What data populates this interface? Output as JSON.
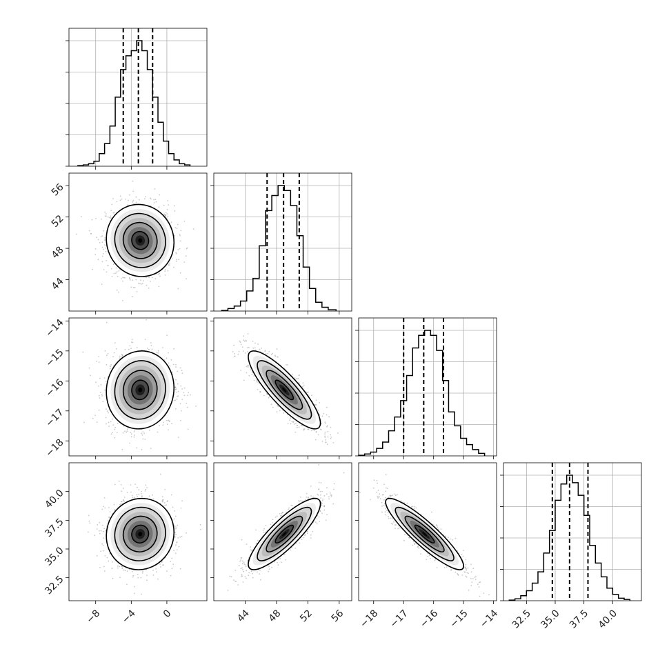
{
  "chart_data": {
    "type": "corner",
    "parameters": [
      {
        "range": [
          -11,
          4.5
        ],
        "ticks": [
          {
            "v": -8,
            "label": "−8"
          },
          {
            "v": -4,
            "label": "−4"
          },
          {
            "v": 0,
            "label": "0"
          }
        ],
        "hist": {
          "edges": [
            -10,
            -9.4,
            -8.8,
            -8.2,
            -7.6,
            -7.0,
            -6.4,
            -5.8,
            -5.2,
            -4.6,
            -4.0,
            -3.4,
            -2.8,
            -2.2,
            -1.6,
            -1.0,
            -0.4,
            0.2,
            0.8,
            1.4,
            2.0,
            2.6
          ],
          "counts": [
            0.5,
            1,
            2,
            4,
            10,
            18,
            32,
            55,
            77,
            88,
            92,
            100,
            92,
            77,
            55,
            35,
            20,
            10,
            5,
            2,
            1
          ],
          "max": 100
        },
        "quantiles": [
          -4.9,
          -3.2,
          -1.6
        ]
      },
      {
        "range": [
          40.0,
          57.6
        ],
        "ticks": [
          {
            "v": 44,
            "label": "44"
          },
          {
            "v": 48,
            "label": "48"
          },
          {
            "v": 52,
            "label": "52"
          },
          {
            "v": 56,
            "label": "56"
          }
        ],
        "hist": {
          "edges": [
            41.0,
            41.8,
            42.6,
            43.4,
            44.2,
            45.0,
            45.8,
            46.6,
            47.4,
            48.2,
            49.0,
            49.8,
            50.6,
            51.4,
            52.2,
            53.0,
            53.8,
            54.6,
            55.6
          ],
          "counts": [
            0.5,
            2,
            4,
            8,
            16,
            26,
            52,
            80,
            92,
            100,
            96,
            84,
            60,
            35,
            18,
            7,
            3,
            1
          ],
          "max": 100
        },
        "quantiles": [
          46.8,
          48.9,
          50.9
        ]
      },
      {
        "range": [
          -18.5,
          -13.9
        ],
        "ticks": [
          {
            "v": -18,
            "label": "−18"
          },
          {
            "v": -17,
            "label": "−17"
          },
          {
            "v": -16,
            "label": "−16"
          },
          {
            "v": -15,
            "label": "−15"
          },
          {
            "v": -14,
            "label": "−14"
          }
        ],
        "hist": {
          "edges": [
            -18.5,
            -18.3,
            -18.1,
            -17.9,
            -17.7,
            -17.5,
            -17.3,
            -17.1,
            -16.9,
            -16.7,
            -16.5,
            -16.3,
            -16.1,
            -15.9,
            -15.7,
            -15.5,
            -15.3,
            -15.1,
            -14.9,
            -14.7,
            -14.5,
            -14.3
          ],
          "counts": [
            0.5,
            1.5,
            3,
            6,
            11,
            20,
            31,
            44,
            64,
            86,
            96,
            100,
            96,
            84,
            60,
            35,
            24,
            14,
            9,
            5,
            2
          ],
          "max": 100
        },
        "quantiles": [
          -17.0,
          -16.33,
          -15.67
        ]
      },
      {
        "range": [
          30.5,
          42.5
        ],
        "ticks": [
          {
            "v": 32.5,
            "label": "32.5"
          },
          {
            "v": 35.0,
            "label": "35.0"
          },
          {
            "v": 37.5,
            "label": "37.5"
          },
          {
            "v": 40.0,
            "label": "40.0"
          }
        ],
        "hist": {
          "edges": [
            31.0,
            31.5,
            32.0,
            32.5,
            33.0,
            33.5,
            34.0,
            34.5,
            35.0,
            35.5,
            36.0,
            36.5,
            37.0,
            37.5,
            38.0,
            38.5,
            39.0,
            39.5,
            40.0,
            40.5,
            41.0,
            41.5
          ],
          "counts": [
            0.5,
            1.5,
            4,
            8,
            14,
            23,
            38,
            56,
            80,
            93,
            100,
            94,
            84,
            68,
            44,
            30,
            19,
            10,
            5,
            2,
            1
          ],
          "max": 100
        },
        "quantiles": [
          34.75,
          36.25,
          37.85
        ]
      }
    ],
    "pairs": [
      {
        "row": 1,
        "col": 0,
        "mean": [
          -3.0,
          49.0
        ],
        "sd": [
          1.9,
          2.3
        ],
        "rho": -0.05,
        "samples": 1300
      },
      {
        "row": 2,
        "col": 0,
        "mean": [
          -3.0,
          -16.3
        ],
        "sd": [
          1.9,
          0.65
        ],
        "rho": 0.05,
        "samples": 1300
      },
      {
        "row": 2,
        "col": 1,
        "mean": [
          49.0,
          -16.3
        ],
        "sd": [
          2.3,
          0.65
        ],
        "rho": -0.85,
        "samples": 1300
      },
      {
        "row": 3,
        "col": 0,
        "mean": [
          -3.0,
          36.3
        ],
        "sd": [
          1.9,
          1.55
        ],
        "rho": 0.05,
        "samples": 1300
      },
      {
        "row": 3,
        "col": 1,
        "mean": [
          49.0,
          36.3
        ],
        "sd": [
          2.3,
          1.55
        ],
        "rho": 0.85,
        "samples": 1300
      },
      {
        "row": 3,
        "col": 2,
        "mean": [
          -16.3,
          36.3
        ],
        "sd": [
          0.65,
          1.55
        ],
        "rho": -0.9,
        "samples": 1300
      }
    ],
    "contour_levels_sigma": [
      0.5,
      1.0,
      1.5,
      2.0
    ],
    "grid": true
  }
}
